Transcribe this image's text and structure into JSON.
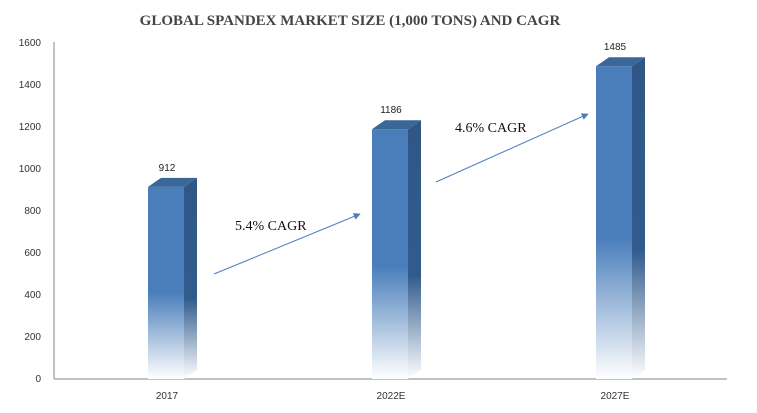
{
  "chart_data": {
    "type": "bar",
    "title": "GLOBAL SPANDEX MARKET SIZE  (1,000 TONS) AND CAGR",
    "categories": [
      "2017",
      "2022E",
      "2027E"
    ],
    "values": [
      912,
      1186,
      1485
    ],
    "data_labels": [
      "912",
      "1186",
      "1485"
    ],
    "ylim": [
      0,
      1600
    ],
    "yticks": [
      "0",
      "200",
      "400",
      "600",
      "800",
      "1000",
      "1200",
      "1400",
      "1600"
    ],
    "grid": false,
    "legend": "none",
    "bar_color": "#4a7ebb",
    "annotations": [
      {
        "text": "5.4% CAGR",
        "from_category": 0,
        "to_category": 1
      },
      {
        "text": "4.6% CAGR",
        "from_category": 1,
        "to_category": 2
      }
    ]
  }
}
